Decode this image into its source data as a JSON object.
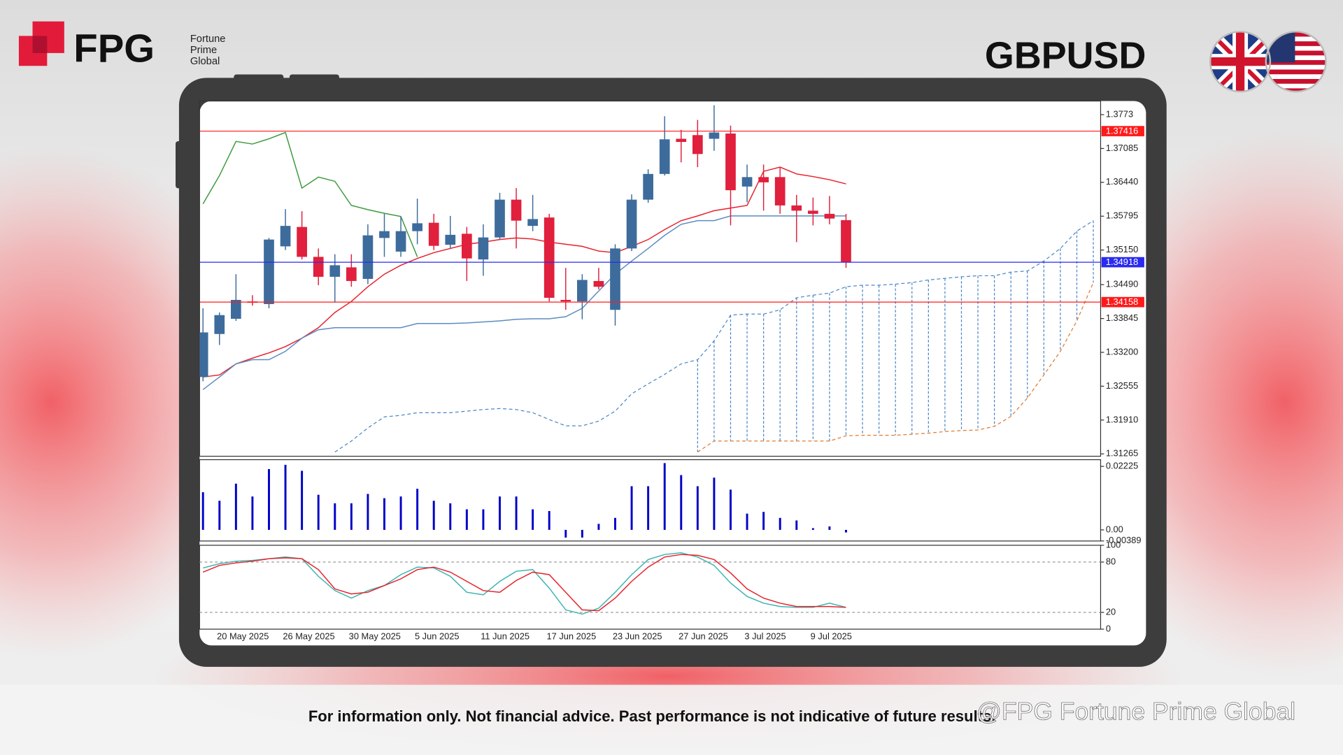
{
  "header": {
    "brand": "FPG",
    "brand_lines": [
      "Fortune",
      "Prime",
      "Global"
    ]
  },
  "chart_data": [
    {
      "type": "candlestick",
      "title": "GBPUSD",
      "categories": [
        null,
        "20 May 2025",
        null,
        null,
        null,
        "26 May 2025",
        null,
        null,
        null,
        "30 May 2025",
        null,
        null,
        null,
        "5 Jun 2025",
        null,
        null,
        null,
        "11 Jun 2025",
        null,
        null,
        null,
        "17 Jun 2025",
        null,
        null,
        null,
        "23 Jun 2025",
        null,
        null,
        null,
        "27 Jun 2025",
        null,
        null,
        null,
        "3 Jul 2025",
        null,
        null,
        null,
        "9 Jul 2025",
        null,
        null,
        null,
        null,
        null,
        null,
        null,
        null,
        null,
        null,
        null,
        null,
        null,
        null,
        null,
        null,
        null
      ],
      "open": [
        1.3273,
        1.3355,
        1.3384,
        1.3417,
        1.3412,
        1.3522,
        1.3559,
        1.3502,
        1.3464,
        1.3482,
        1.346,
        1.3538,
        1.3512,
        1.3551,
        1.3567,
        1.3525,
        1.3546,
        1.3497,
        1.3539,
        1.3611,
        1.3561,
        1.3577,
        1.342,
        1.3417,
        1.3456,
        1.3401,
        1.3518,
        1.3611,
        1.366,
        1.3727,
        1.3734,
        1.3727,
        1.3737,
        1.3636,
        1.3654,
        1.3654,
        1.36,
        1.359,
        1.3584,
        1.3572,
        null,
        null,
        null,
        null,
        null,
        null,
        null,
        null,
        null,
        null,
        null,
        null,
        null,
        null,
        null
      ],
      "high": [
        1.3404,
        1.3396,
        1.3469,
        1.3429,
        1.3538,
        1.3593,
        1.3589,
        1.3518,
        1.3507,
        1.3507,
        1.3564,
        1.3584,
        1.3579,
        1.3613,
        1.3584,
        1.358,
        1.3559,
        1.3564,
        1.3624,
        1.3633,
        1.362,
        1.3584,
        1.3481,
        1.3469,
        1.3481,
        1.3526,
        1.3621,
        1.3669,
        1.377,
        1.3744,
        1.3763,
        1.3791,
        1.3752,
        1.3678,
        1.3678,
        1.3673,
        1.362,
        1.3615,
        1.3618,
        1.3584,
        null,
        null,
        null,
        null,
        null,
        null,
        null,
        null,
        null,
        null,
        null,
        null,
        null,
        null,
        null
      ],
      "low": [
        1.3265,
        1.3334,
        1.338,
        1.3409,
        1.3404,
        1.3515,
        1.3497,
        1.3448,
        1.3415,
        1.3445,
        1.345,
        1.3502,
        1.3502,
        1.3526,
        1.3515,
        1.3518,
        1.3456,
        1.3466,
        1.3535,
        1.3518,
        1.3551,
        1.3417,
        1.3401,
        1.3383,
        1.344,
        1.3371,
        1.3513,
        1.3605,
        1.3657,
        1.3682,
        1.3673,
        1.3704,
        1.3562,
        1.3606,
        1.359,
        1.3584,
        1.353,
        1.3562,
        1.3564,
        1.3481,
        null,
        null,
        null,
        null,
        null,
        null,
        null,
        null,
        null,
        null,
        null,
        null,
        null,
        null,
        null
      ],
      "close": [
        1.3358,
        1.3391,
        1.342,
        1.3415,
        1.3535,
        1.3561,
        1.3502,
        1.3464,
        1.3486,
        1.3456,
        1.3543,
        1.3551,
        1.3551,
        1.3566,
        1.3523,
        1.3544,
        1.3499,
        1.3539,
        1.3611,
        1.3571,
        1.3574,
        1.3424,
        1.3417,
        1.3458,
        1.3445,
        1.3518,
        1.3611,
        1.366,
        1.3726,
        1.3721,
        1.3698,
        1.3739,
        1.3629,
        1.3654,
        1.3644,
        1.36,
        1.359,
        1.3584,
        1.3575,
        1.3492,
        null,
        null,
        null,
        null,
        null,
        null,
        null,
        null,
        null,
        null,
        null,
        null,
        null,
        null,
        null
      ],
      "up_color": "#3d6c9c",
      "down_color": "#e0203c",
      "lines": [
        {
          "color": "#e8202a",
          "dashed": false,
          "values": [
            1.3273,
            1.3277,
            1.3298,
            1.3309,
            1.3319,
            1.3331,
            1.3347,
            1.3367,
            1.3396,
            1.3417,
            1.3445,
            1.3469,
            1.3486,
            1.3499,
            1.351,
            1.3518,
            1.3526,
            1.353,
            1.3535,
            1.3538,
            1.3536,
            1.353,
            1.3526,
            1.3522,
            1.3513,
            1.351,
            1.3522,
            1.3535,
            1.3554,
            1.3571,
            1.358,
            1.359,
            1.3595,
            1.36,
            1.3665,
            1.3673,
            1.366,
            1.3655,
            1.3649,
            1.3641,
            null,
            null,
            null,
            null,
            null,
            null,
            null,
            null,
            null,
            null,
            null,
            null,
            null,
            null,
            null
          ]
        },
        {
          "color": "#5b8cc0",
          "dashed": false,
          "values": [
            1.3249,
            1.3273,
            1.3298,
            1.3306,
            1.3306,
            1.3322,
            1.3347,
            1.3363,
            1.3367,
            1.3367,
            1.3367,
            1.3367,
            1.3367,
            1.3375,
            1.3375,
            1.3375,
            1.3376,
            1.3378,
            1.338,
            1.3383,
            1.3384,
            1.3384,
            1.3388,
            1.3404,
            1.3437,
            1.3469,
            1.3494,
            1.3518,
            1.3543,
            1.3564,
            1.3571,
            1.3571,
            1.358,
            1.358,
            1.358,
            1.358,
            1.358,
            1.358,
            1.358,
            1.358,
            null,
            null,
            null,
            null,
            null,
            null,
            null,
            null,
            null,
            null,
            null,
            null,
            null,
            null,
            null
          ]
        },
        {
          "color": "#3c9a3c",
          "dashed": false,
          "values": [
            1.3603,
            1.3657,
            1.3722,
            1.3717,
            1.3727,
            1.3739,
            1.3633,
            1.3654,
            1.3646,
            1.36,
            1.3592,
            1.3585,
            1.3579,
            1.3502,
            null,
            null,
            null,
            null,
            null,
            null,
            null,
            null,
            null,
            null,
            null,
            null,
            null,
            null,
            null,
            null,
            null,
            null,
            null,
            null,
            null,
            null,
            null,
            null,
            null,
            null,
            null,
            null,
            null,
            null,
            null,
            null,
            null,
            null,
            null,
            null,
            null,
            null,
            null,
            null,
            null
          ]
        },
        {
          "color": "#4a86c8",
          "dashed": true,
          "values": [
            null,
            null,
            null,
            null,
            null,
            null,
            null,
            null,
            1.313,
            1.3151,
            1.3176,
            1.3197,
            1.32,
            1.3205,
            1.3205,
            1.3205,
            1.3208,
            1.3211,
            1.3213,
            1.3211,
            1.3205,
            1.3192,
            1.318,
            1.318,
            1.3189,
            1.3208,
            1.3241,
            1.326,
            1.3278,
            1.3298,
            1.3306,
            1.3342,
            1.3391,
            1.3393,
            1.3393,
            1.3401,
            1.3424,
            1.3429,
            1.3433,
            1.3445,
            1.3448,
            1.3448,
            1.345,
            1.3453,
            1.3458,
            1.3461,
            1.3464,
            1.3466,
            1.3466,
            1.3473,
            1.3475,
            1.3494,
            1.3518,
            1.3551,
            1.3571
          ]
        },
        {
          "color": "#e07a30",
          "dashed": true,
          "values": [
            null,
            null,
            null,
            null,
            null,
            null,
            null,
            null,
            null,
            null,
            null,
            null,
            null,
            null,
            null,
            null,
            null,
            null,
            null,
            null,
            null,
            null,
            null,
            null,
            null,
            null,
            null,
            null,
            null,
            null,
            1.313,
            1.3151,
            1.3151,
            1.3151,
            1.3151,
            1.3151,
            1.3151,
            1.3151,
            1.3151,
            1.3161,
            1.3162,
            1.3162,
            1.3162,
            1.3164,
            1.3166,
            1.3169,
            1.3171,
            1.3172,
            1.3179,
            1.3198,
            1.3233,
            1.3277,
            1.3322,
            1.338,
            1.3453
          ]
        }
      ],
      "cloud": true,
      "levels": [
        {
          "value": 1.37416,
          "color": "#ff1a1a"
        },
        {
          "value": 1.34918,
          "color": "#2a2af0"
        },
        {
          "value": 1.34158,
          "color": "#ff1a1a"
        }
      ],
      "ylim": [
        1.3122,
        1.3799
      ],
      "yticks": [
        1.3773,
        1.37085,
        {
          "value": 1.3644,
          "label": "1.36440"
        },
        1.35795,
        {
          "value": 1.3515,
          "label": "1.35150"
        },
        {
          "value": 1.3449,
          "label": "1.34490"
        },
        1.33845,
        {
          "value": 1.332,
          "label": "1.33200"
        },
        1.32555,
        {
          "value": 1.3191,
          "label": "1.31910"
        },
        1.31265
      ]
    },
    {
      "type": "bar",
      "color": "#0000c8",
      "values": [
        0.0132,
        0.0102,
        0.0162,
        0.0117,
        0.0213,
        0.0228,
        0.0207,
        0.0123,
        0.0093,
        0.0093,
        0.0126,
        0.0111,
        0.0117,
        0.0144,
        0.0102,
        0.0093,
        0.0072,
        0.0072,
        0.0117,
        0.0117,
        0.0072,
        0.0066,
        -0.0027,
        -0.0027,
        0.0021,
        0.0042,
        0.0153,
        0.0153,
        0.0234,
        0.0192,
        0.0153,
        0.0183,
        0.0141,
        0.0057,
        0.0063,
        0.0042,
        0.0033,
        0.0006,
        0.0012,
        -0.0009
      ],
      "ylim": [
        -0.0039,
        0.0246
      ],
      "yticks": [
        {
          "value": 0.02225,
          "label": "0.02225"
        },
        {
          "value": 0,
          "label": "0.00"
        },
        -0.00389
      ]
    },
    {
      "type": "line",
      "series": [
        {
          "color": "#3bb3b0",
          "values": [
            73,
            78,
            81,
            82,
            84,
            86,
            84,
            63,
            46,
            37,
            46,
            52,
            65,
            74,
            73,
            63,
            44,
            41,
            57,
            69,
            71,
            49,
            23,
            18,
            25,
            44,
            65,
            83,
            89,
            91,
            86,
            76,
            55,
            39,
            31,
            27,
            26,
            26,
            31,
            26
          ]
        },
        {
          "color": "#e8202a",
          "values": [
            68,
            76,
            79,
            81,
            84,
            85,
            84,
            71,
            48,
            42,
            44,
            52,
            60,
            71,
            74,
            68,
            57,
            46,
            44,
            58,
            68,
            65,
            44,
            23,
            22,
            37,
            57,
            74,
            86,
            89,
            88,
            83,
            67,
            48,
            37,
            31,
            27,
            27,
            27,
            26
          ]
        }
      ],
      "ylim": [
        0,
        100
      ],
      "yticks": [
        100,
        80,
        20,
        0
      ]
    }
  ],
  "footer": {
    "disclaimer": "For information only. Not financial advice. Past performance is not indicative of future results.",
    "watermark": "@FPG Fortune Prime Global"
  }
}
